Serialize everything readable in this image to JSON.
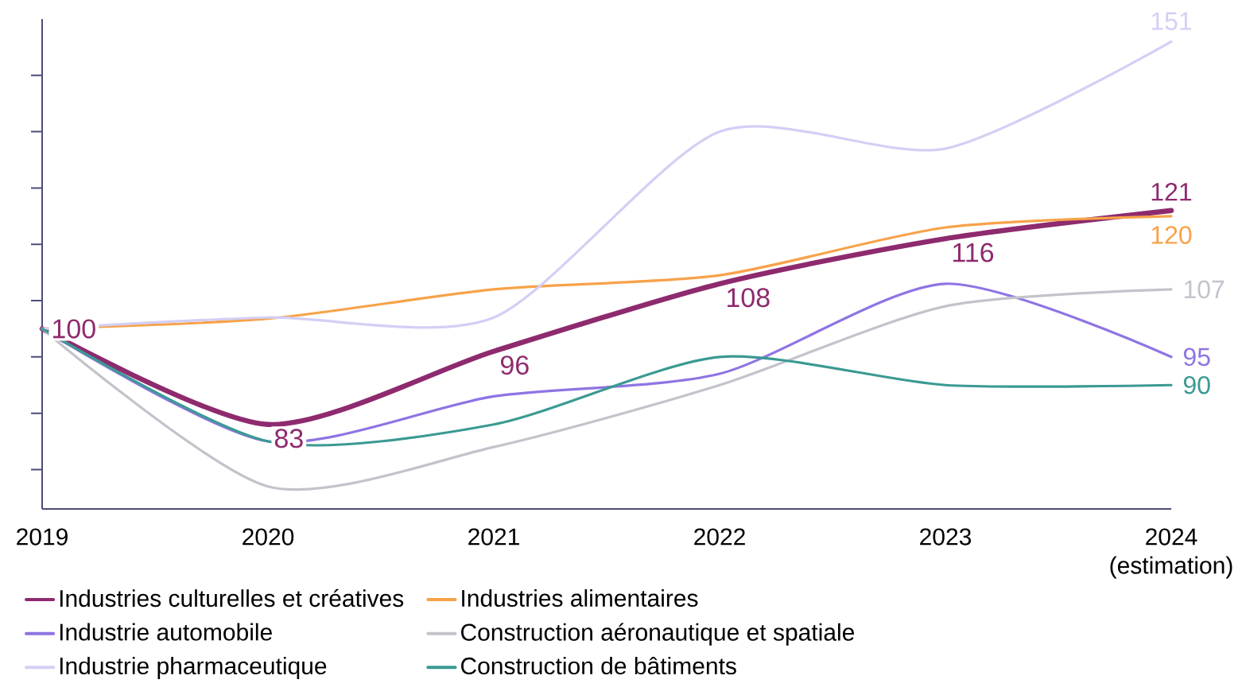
{
  "chart_data": {
    "type": "line",
    "categories": [
      "2019",
      "2020",
      "2021",
      "2022",
      "2023",
      "2024 (estimation)"
    ],
    "series": [
      {
        "name": "Industries culturelles et créatives",
        "color": "#8e2a6e",
        "values": [
          100,
          83,
          96,
          108,
          116,
          121
        ],
        "value_labels": [
          "100",
          "83",
          "96",
          "108",
          "116",
          "121"
        ]
      },
      {
        "name": "Industries alimentaires",
        "color": "#f7a24a",
        "values": [
          100,
          101.8,
          107,
          109.5,
          118,
          120
        ],
        "value_labels": [
          null,
          null,
          null,
          null,
          null,
          "120"
        ]
      },
      {
        "name": "Industrie automobile",
        "color": "#8f74e3",
        "values": [
          100,
          80,
          88,
          92,
          108,
          95
        ],
        "value_labels": [
          null,
          null,
          null,
          null,
          null,
          "95"
        ]
      },
      {
        "name": "Construction aéronautique et spatiale",
        "color": "#c4c3cc",
        "values": [
          100,
          72,
          79,
          90,
          104,
          107
        ],
        "value_labels": [
          null,
          null,
          null,
          null,
          null,
          "107"
        ]
      },
      {
        "name": "Industrie pharmaceutique",
        "color": "#d3cff5",
        "values": [
          100,
          102,
          102,
          135,
          132,
          151
        ],
        "value_labels": [
          null,
          null,
          null,
          null,
          null,
          "151"
        ]
      },
      {
        "name": "Construction de bâtiments",
        "color": "#3a9a92",
        "values": [
          100,
          80,
          83,
          95,
          90,
          90
        ],
        "value_labels": [
          null,
          null,
          null,
          null,
          null,
          "90"
        ]
      }
    ],
    "ylim": [
      68,
      155
    ],
    "yticks": [
      {
        "value": 75,
        "label": null
      },
      {
        "value": 85,
        "label": null
      },
      {
        "value": 95,
        "label": null
      },
      {
        "value": 105,
        "label": null
      },
      {
        "value": 115,
        "label": null
      },
      {
        "value": 125,
        "label": null
      },
      {
        "value": 135,
        "label": null
      },
      {
        "value": 145,
        "label": null
      }
    ],
    "tick_labels": "x",
    "grid": false,
    "legend": "bottom",
    "marker": "none",
    "line_style": "solid"
  }
}
